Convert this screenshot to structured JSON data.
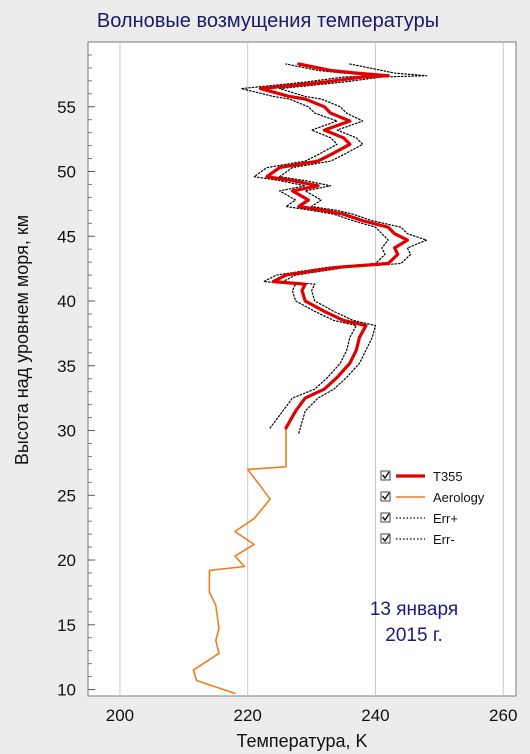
{
  "chart_data": {
    "type": "line",
    "title": "Волновые возмущения температуры",
    "xlabel": "Температура, K",
    "ylabel": "Высота над уровнем моря, км",
    "xlim": [
      195,
      262
    ],
    "ylim": [
      9.5,
      60
    ],
    "xticks": [
      200,
      220,
      240,
      260
    ],
    "yticks": [
      10,
      15,
      20,
      25,
      30,
      35,
      40,
      45,
      50,
      55
    ],
    "grid": {
      "vertical": true,
      "horizontal": false
    },
    "legend_position": "right-middle",
    "annotation": [
      "13 января",
      "2015 г."
    ],
    "colors": {
      "T355": "#e00000",
      "Aerology": "#ee7d1c",
      "Err": "#000000",
      "title": "#1a1a66",
      "annotation": "#1a1a80"
    },
    "series": [
      {
        "name": "T355",
        "style": "solid-thick",
        "points": [
          [
            226,
            30.2
          ],
          [
            227.5,
            31.5
          ],
          [
            229,
            32.5
          ],
          [
            232,
            33.2
          ],
          [
            234,
            34.1
          ],
          [
            236,
            35.2
          ],
          [
            237,
            36.2
          ],
          [
            237.5,
            37.2
          ],
          [
            238.5,
            38.1
          ],
          [
            235,
            38.5
          ],
          [
            232,
            39.2
          ],
          [
            229,
            40
          ],
          [
            228.5,
            40.8
          ],
          [
            229,
            41.3
          ],
          [
            224,
            41.5
          ],
          [
            226,
            42
          ],
          [
            234,
            42.6
          ],
          [
            242,
            42.9
          ],
          [
            243.5,
            43.6
          ],
          [
            243,
            44.1
          ],
          [
            245,
            44.7
          ],
          [
            243,
            45.2
          ],
          [
            242,
            45.7
          ],
          [
            238,
            46.2
          ],
          [
            235,
            46.7
          ],
          [
            232,
            47
          ],
          [
            228,
            47.3
          ],
          [
            229.5,
            47.8
          ],
          [
            227,
            48.5
          ],
          [
            231,
            48.9
          ],
          [
            227,
            49.3
          ],
          [
            223,
            49.6
          ],
          [
            225,
            50.3
          ],
          [
            231,
            50.8
          ],
          [
            233,
            51.3
          ],
          [
            236,
            52.1
          ],
          [
            235,
            52.6
          ],
          [
            232,
            53.2
          ],
          [
            236,
            53.9
          ],
          [
            233,
            54.5
          ],
          [
            232,
            55
          ],
          [
            229,
            55.6
          ],
          [
            226.5,
            55.8
          ],
          [
            222,
            56.4
          ],
          [
            232,
            56.9
          ],
          [
            238,
            57.3
          ],
          [
            242,
            57.4
          ],
          [
            237,
            57.6
          ],
          [
            233,
            57.8
          ],
          [
            228,
            58.3
          ]
        ]
      },
      {
        "name": "Aerology",
        "style": "solid-thin",
        "points": [
          [
            218,
            9.7
          ],
          [
            212,
            10.7
          ],
          [
            211.5,
            11.5
          ],
          [
            215.5,
            12.8
          ],
          [
            215,
            13.8
          ],
          [
            215.5,
            14.7
          ],
          [
            215,
            16.5
          ],
          [
            214,
            17.5
          ],
          [
            214,
            19.2
          ],
          [
            219.5,
            19.5
          ],
          [
            218,
            20.3
          ],
          [
            221,
            21.2
          ],
          [
            218,
            22.2
          ],
          [
            221,
            23.2
          ],
          [
            223.5,
            24.7
          ],
          [
            222,
            25.7
          ],
          [
            220,
            27
          ],
          [
            226,
            27.2
          ],
          [
            226,
            30.2
          ]
        ]
      },
      {
        "name": "Err+",
        "style": "dotted",
        "points": [
          [
            228,
            29.8
          ],
          [
            229,
            31.5
          ],
          [
            231,
            32.5
          ],
          [
            233.5,
            33.2
          ],
          [
            235.5,
            34.1
          ],
          [
            237.5,
            35.2
          ],
          [
            238.5,
            36.2
          ],
          [
            239.5,
            37.2
          ],
          [
            240,
            38.1
          ],
          [
            236.5,
            38.5
          ],
          [
            233.5,
            39.2
          ],
          [
            230.5,
            40
          ],
          [
            230,
            40.8
          ],
          [
            230.5,
            41.3
          ],
          [
            225.5,
            41.5
          ],
          [
            227.5,
            42
          ],
          [
            235.5,
            42.6
          ],
          [
            244,
            42.9
          ],
          [
            245.5,
            43.6
          ],
          [
            245,
            44.1
          ],
          [
            248,
            44.7
          ],
          [
            245,
            45.2
          ],
          [
            244,
            45.7
          ],
          [
            239.5,
            46.2
          ],
          [
            236.5,
            46.7
          ],
          [
            234,
            47
          ],
          [
            230,
            47.3
          ],
          [
            231.5,
            47.8
          ],
          [
            229,
            48.5
          ],
          [
            233,
            48.9
          ],
          [
            229,
            49.3
          ],
          [
            225,
            49.6
          ],
          [
            227,
            50.3
          ],
          [
            233,
            50.8
          ],
          [
            235,
            51.3
          ],
          [
            238,
            52.1
          ],
          [
            237,
            52.6
          ],
          [
            234,
            53.2
          ],
          [
            238,
            53.9
          ],
          [
            235.5,
            54.5
          ],
          [
            234.5,
            55
          ],
          [
            231.5,
            55.6
          ],
          [
            229,
            55.8
          ],
          [
            225,
            56.4
          ],
          [
            235,
            56.9
          ],
          [
            241,
            57.3
          ],
          [
            248,
            57.4
          ],
          [
            243,
            57.6
          ],
          [
            241,
            57.8
          ],
          [
            236,
            58.3
          ]
        ]
      },
      {
        "name": "Err-",
        "style": "dotted",
        "points": [
          [
            223.5,
            30.2
          ],
          [
            225.5,
            31.5
          ],
          [
            227,
            32.5
          ],
          [
            230.5,
            33.2
          ],
          [
            232.5,
            34.1
          ],
          [
            234.5,
            35.2
          ],
          [
            235.5,
            36.2
          ],
          [
            236,
            37.2
          ],
          [
            237,
            38.1
          ],
          [
            233.5,
            38.5
          ],
          [
            230.5,
            39.2
          ],
          [
            227.5,
            40
          ],
          [
            227,
            40.8
          ],
          [
            227.5,
            41.3
          ],
          [
            222.5,
            41.5
          ],
          [
            224.5,
            42
          ],
          [
            232.5,
            42.6
          ],
          [
            240,
            42.9
          ],
          [
            241.5,
            43.6
          ],
          [
            241,
            44.1
          ],
          [
            242,
            44.7
          ],
          [
            241,
            45.2
          ],
          [
            240,
            45.7
          ],
          [
            236.5,
            46.2
          ],
          [
            233.5,
            46.7
          ],
          [
            230,
            47
          ],
          [
            226,
            47.3
          ],
          [
            227.5,
            47.8
          ],
          [
            225,
            48.5
          ],
          [
            229,
            48.9
          ],
          [
            225,
            49.3
          ],
          [
            221,
            49.6
          ],
          [
            223,
            50.3
          ],
          [
            229,
            50.8
          ],
          [
            231,
            51.3
          ],
          [
            234,
            52.1
          ],
          [
            233,
            52.6
          ],
          [
            230,
            53.2
          ],
          [
            234,
            53.9
          ],
          [
            230.5,
            54.5
          ],
          [
            229.5,
            55
          ],
          [
            226.5,
            55.6
          ],
          [
            224,
            55.8
          ],
          [
            219,
            56.4
          ],
          [
            229,
            56.9
          ],
          [
            235,
            57.3
          ],
          [
            240,
            57.4
          ],
          [
            235,
            57.6
          ],
          [
            231,
            57.8
          ],
          [
            226,
            58.3
          ]
        ]
      }
    ]
  }
}
